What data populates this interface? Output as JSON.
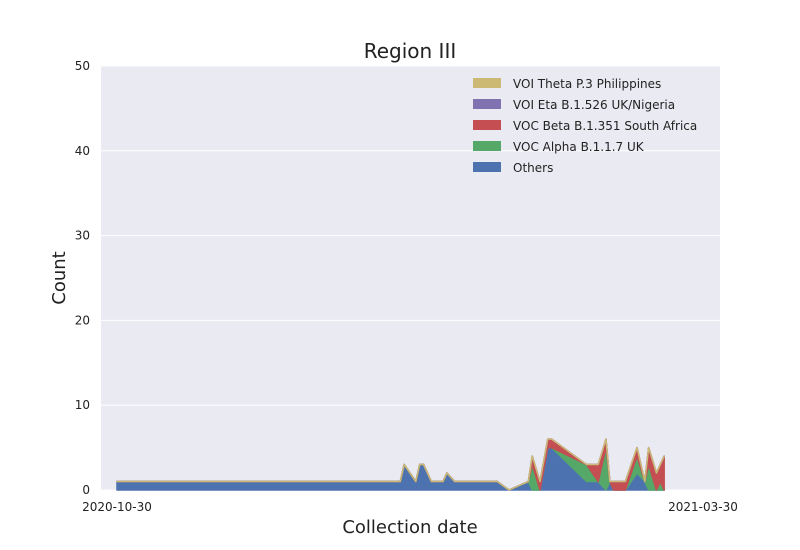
{
  "chart_data": {
    "type": "area",
    "stacked": true,
    "title": "Region III",
    "xlabel": "Collection date",
    "ylabel": "Count",
    "ylim": [
      0,
      50
    ],
    "yticks": [
      0,
      10,
      20,
      30,
      40,
      50
    ],
    "xlim": [
      "2020-10-30",
      "2021-03-30"
    ],
    "xticks": [
      "2020-10-30",
      "2021-03-30"
    ],
    "grid": true,
    "legend_position": "top-right",
    "background": "#eaeaf2",
    "x": [
      "2020-10-30",
      "2021-01-11",
      "2021-01-12",
      "2021-01-15",
      "2021-01-16",
      "2021-01-17",
      "2021-01-19",
      "2021-01-22",
      "2021-01-23",
      "2021-01-25",
      "2021-02-05",
      "2021-02-08",
      "2021-02-13",
      "2021-02-14",
      "2021-02-16",
      "2021-02-18",
      "2021-02-19",
      "2021-02-28",
      "2021-03-03",
      "2021-03-05",
      "2021-03-06",
      "2021-03-07",
      "2021-03-10",
      "2021-03-13",
      "2021-03-15",
      "2021-03-16",
      "2021-03-18",
      "2021-03-19",
      "2021-03-20"
    ],
    "series": [
      {
        "name": "Others",
        "color": "#4c72b0",
        "values": [
          1,
          1,
          3,
          1,
          3,
          3,
          1,
          1,
          2,
          1,
          1,
          0,
          1,
          0,
          0,
          5,
          5,
          1,
          1,
          0,
          1,
          0,
          0,
          2,
          1,
          0,
          0,
          0,
          0
        ]
      },
      {
        "name": "VOC Alpha B.1.1.7 UK",
        "color": "#55a868",
        "values": [
          0,
          0,
          0,
          0,
          0,
          0,
          0,
          0,
          0,
          0,
          0,
          0,
          0,
          3,
          0,
          0,
          0,
          2,
          0,
          5,
          0,
          0,
          0,
          2,
          0,
          3,
          0,
          1,
          0
        ]
      },
      {
        "name": "VOC Beta B.1.351 South Africa",
        "color": "#c44e52",
        "values": [
          0,
          0,
          0,
          0,
          0,
          0,
          0,
          0,
          0,
          0,
          0,
          0,
          0,
          1,
          1,
          1,
          1,
          0,
          2,
          1,
          0,
          1,
          1,
          1,
          0,
          2,
          2,
          2,
          4
        ]
      },
      {
        "name": "VOI Eta B.1.526 UK/Nigeria",
        "color": "#8172b2",
        "values": [
          0,
          0,
          0,
          0,
          0,
          0,
          0,
          0,
          0,
          0,
          0,
          0,
          0,
          0,
          0,
          0,
          0,
          0,
          0,
          0,
          0,
          0,
          0,
          0,
          0,
          0,
          0,
          0,
          0
        ]
      },
      {
        "name": "VOI Theta P.3 Philippines",
        "color": "#ccb974",
        "values": [
          0,
          0,
          0,
          0,
          0,
          0,
          0,
          0,
          0,
          0,
          0,
          0,
          0,
          0,
          0,
          0,
          0,
          0,
          0,
          0,
          0,
          0,
          0,
          0,
          0,
          0,
          0,
          0,
          0
        ]
      }
    ]
  }
}
